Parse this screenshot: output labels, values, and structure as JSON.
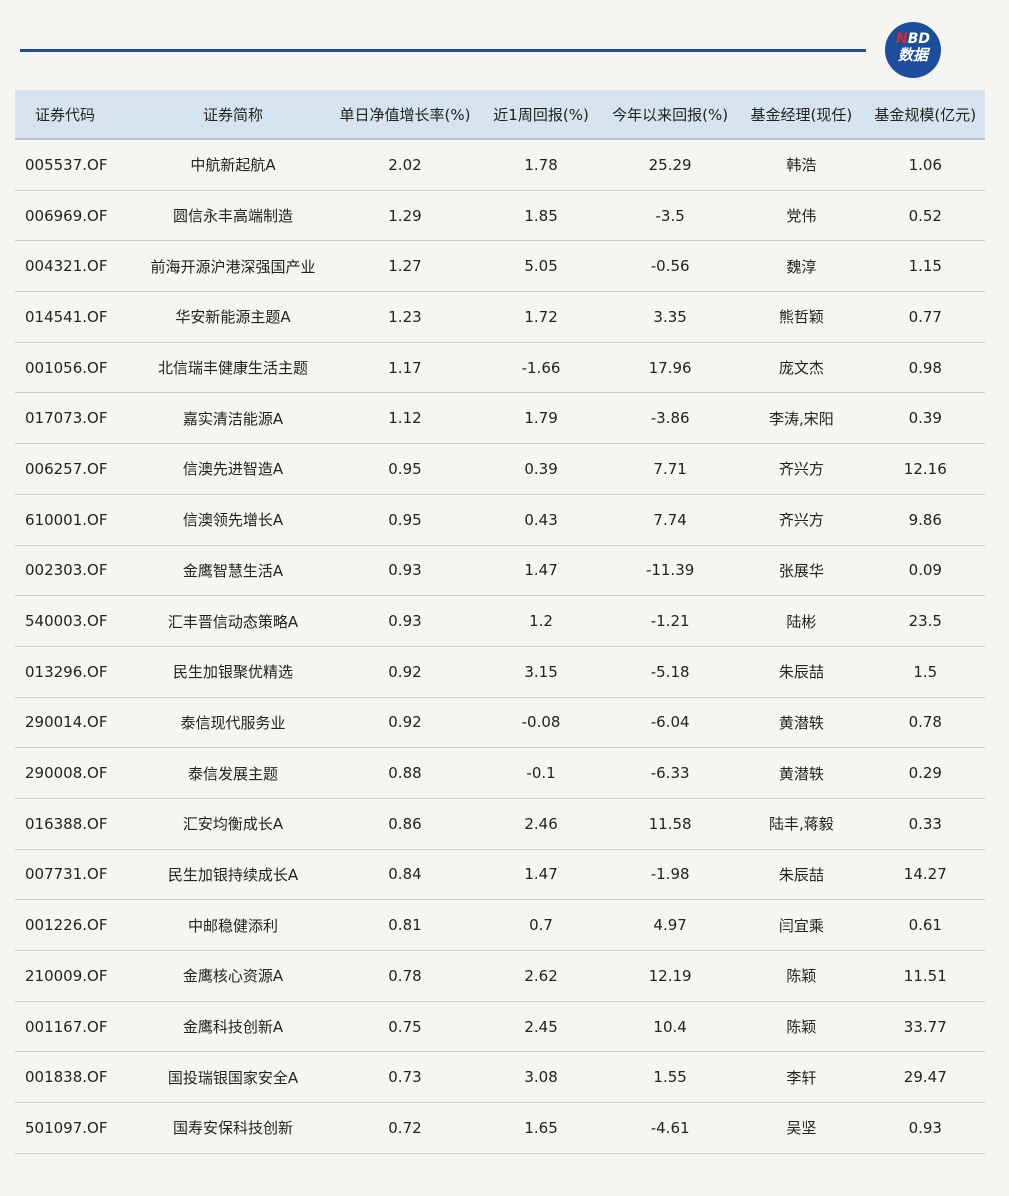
{
  "logo": {
    "line1_accent": "N",
    "line1_rest": "BD",
    "line2": "数据",
    "colors": {
      "brand": "#1d4e9c",
      "accent": "#e3262b"
    }
  },
  "table": {
    "headers": [
      "证券代码",
      "证券简称",
      "单日净值增长率(%)",
      "近1周回报(%)",
      "今年以来回报(%)",
      "基金经理(现任)",
      "基金规模(亿元)"
    ],
    "rows": [
      [
        "005537.OF",
        "中航新起航A",
        "2.02",
        "1.78",
        "25.29",
        "韩浩",
        "1.06"
      ],
      [
        "006969.OF",
        "圆信永丰高端制造",
        "1.29",
        "1.85",
        "-3.5",
        "党伟",
        "0.52"
      ],
      [
        "004321.OF",
        "前海开源沪港深强国产业",
        "1.27",
        "5.05",
        "-0.56",
        "魏淳",
        "1.15"
      ],
      [
        "014541.OF",
        "华安新能源主题A",
        "1.23",
        "1.72",
        "3.35",
        "熊哲颖",
        "0.77"
      ],
      [
        "001056.OF",
        "北信瑞丰健康生活主题",
        "1.17",
        "-1.66",
        "17.96",
        "庞文杰",
        "0.98"
      ],
      [
        "017073.OF",
        "嘉实清洁能源A",
        "1.12",
        "1.79",
        "-3.86",
        "李涛,宋阳",
        "0.39"
      ],
      [
        "006257.OF",
        "信澳先进智造A",
        "0.95",
        "0.39",
        "7.71",
        "齐兴方",
        "12.16"
      ],
      [
        "610001.OF",
        "信澳领先增长A",
        "0.95",
        "0.43",
        "7.74",
        "齐兴方",
        "9.86"
      ],
      [
        "002303.OF",
        "金鹰智慧生活A",
        "0.93",
        "1.47",
        "-11.39",
        "张展华",
        "0.09"
      ],
      [
        "540003.OF",
        "汇丰晋信动态策略A",
        "0.93",
        "1.2",
        "-1.21",
        "陆彬",
        "23.5"
      ],
      [
        "013296.OF",
        "民生加银聚优精选",
        "0.92",
        "3.15",
        "-5.18",
        "朱辰喆",
        "1.5"
      ],
      [
        "290014.OF",
        "泰信现代服务业",
        "0.92",
        "-0.08",
        "-6.04",
        "黄潜轶",
        "0.78"
      ],
      [
        "290008.OF",
        "泰信发展主题",
        "0.88",
        "-0.1",
        "-6.33",
        "黄潜轶",
        "0.29"
      ],
      [
        "016388.OF",
        "汇安均衡成长A",
        "0.86",
        "2.46",
        "11.58",
        "陆丰,蒋毅",
        "0.33"
      ],
      [
        "007731.OF",
        "民生加银持续成长A",
        "0.84",
        "1.47",
        "-1.98",
        "朱辰喆",
        "14.27"
      ],
      [
        "001226.OF",
        "中邮稳健添利",
        "0.81",
        "0.7",
        "4.97",
        "闫宜乘",
        "0.61"
      ],
      [
        "210009.OF",
        "金鹰核心资源A",
        "0.78",
        "2.62",
        "12.19",
        "陈颖",
        "11.51"
      ],
      [
        "001167.OF",
        "金鹰科技创新A",
        "0.75",
        "2.45",
        "10.4",
        "陈颖",
        "33.77"
      ],
      [
        "001838.OF",
        "国投瑞银国家安全A",
        "0.73",
        "3.08",
        "1.55",
        "李轩",
        "29.47"
      ],
      [
        "501097.OF",
        "国寿安保科技创新",
        "0.72",
        "1.65",
        "-4.61",
        "吴坚",
        "0.93"
      ]
    ]
  }
}
